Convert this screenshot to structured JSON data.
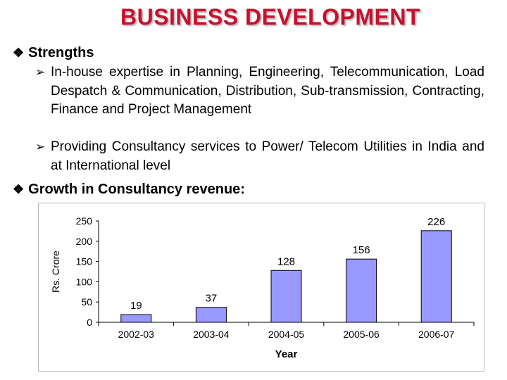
{
  "title": "BUSINESS DEVELOPMENT",
  "strengths": {
    "heading": "Strengths",
    "items": [
      "In-house expertise in Planning, Engineering, Telecommunication, Load Despatch & Communication, Distribution, Sub-transmission, Contracting, Finance and Project Management",
      "Providing Consultancy services to Power/ Telecom Utilities in India and at International level"
    ]
  },
  "growth": {
    "heading": "Growth in Consultancy revenue:"
  },
  "chart_data": {
    "type": "bar",
    "categories": [
      "2002-03",
      "2003-04",
      "2004-05",
      "2005-06",
      "2006-07"
    ],
    "values": [
      19,
      37,
      128,
      156,
      226
    ],
    "xlabel": "Year",
    "ylabel": "Rs. Crore",
    "ylim": [
      0,
      250
    ],
    "yticks": [
      0,
      50,
      100,
      150,
      200,
      250
    ],
    "bar_color": "#9999ff",
    "grid": false
  }
}
